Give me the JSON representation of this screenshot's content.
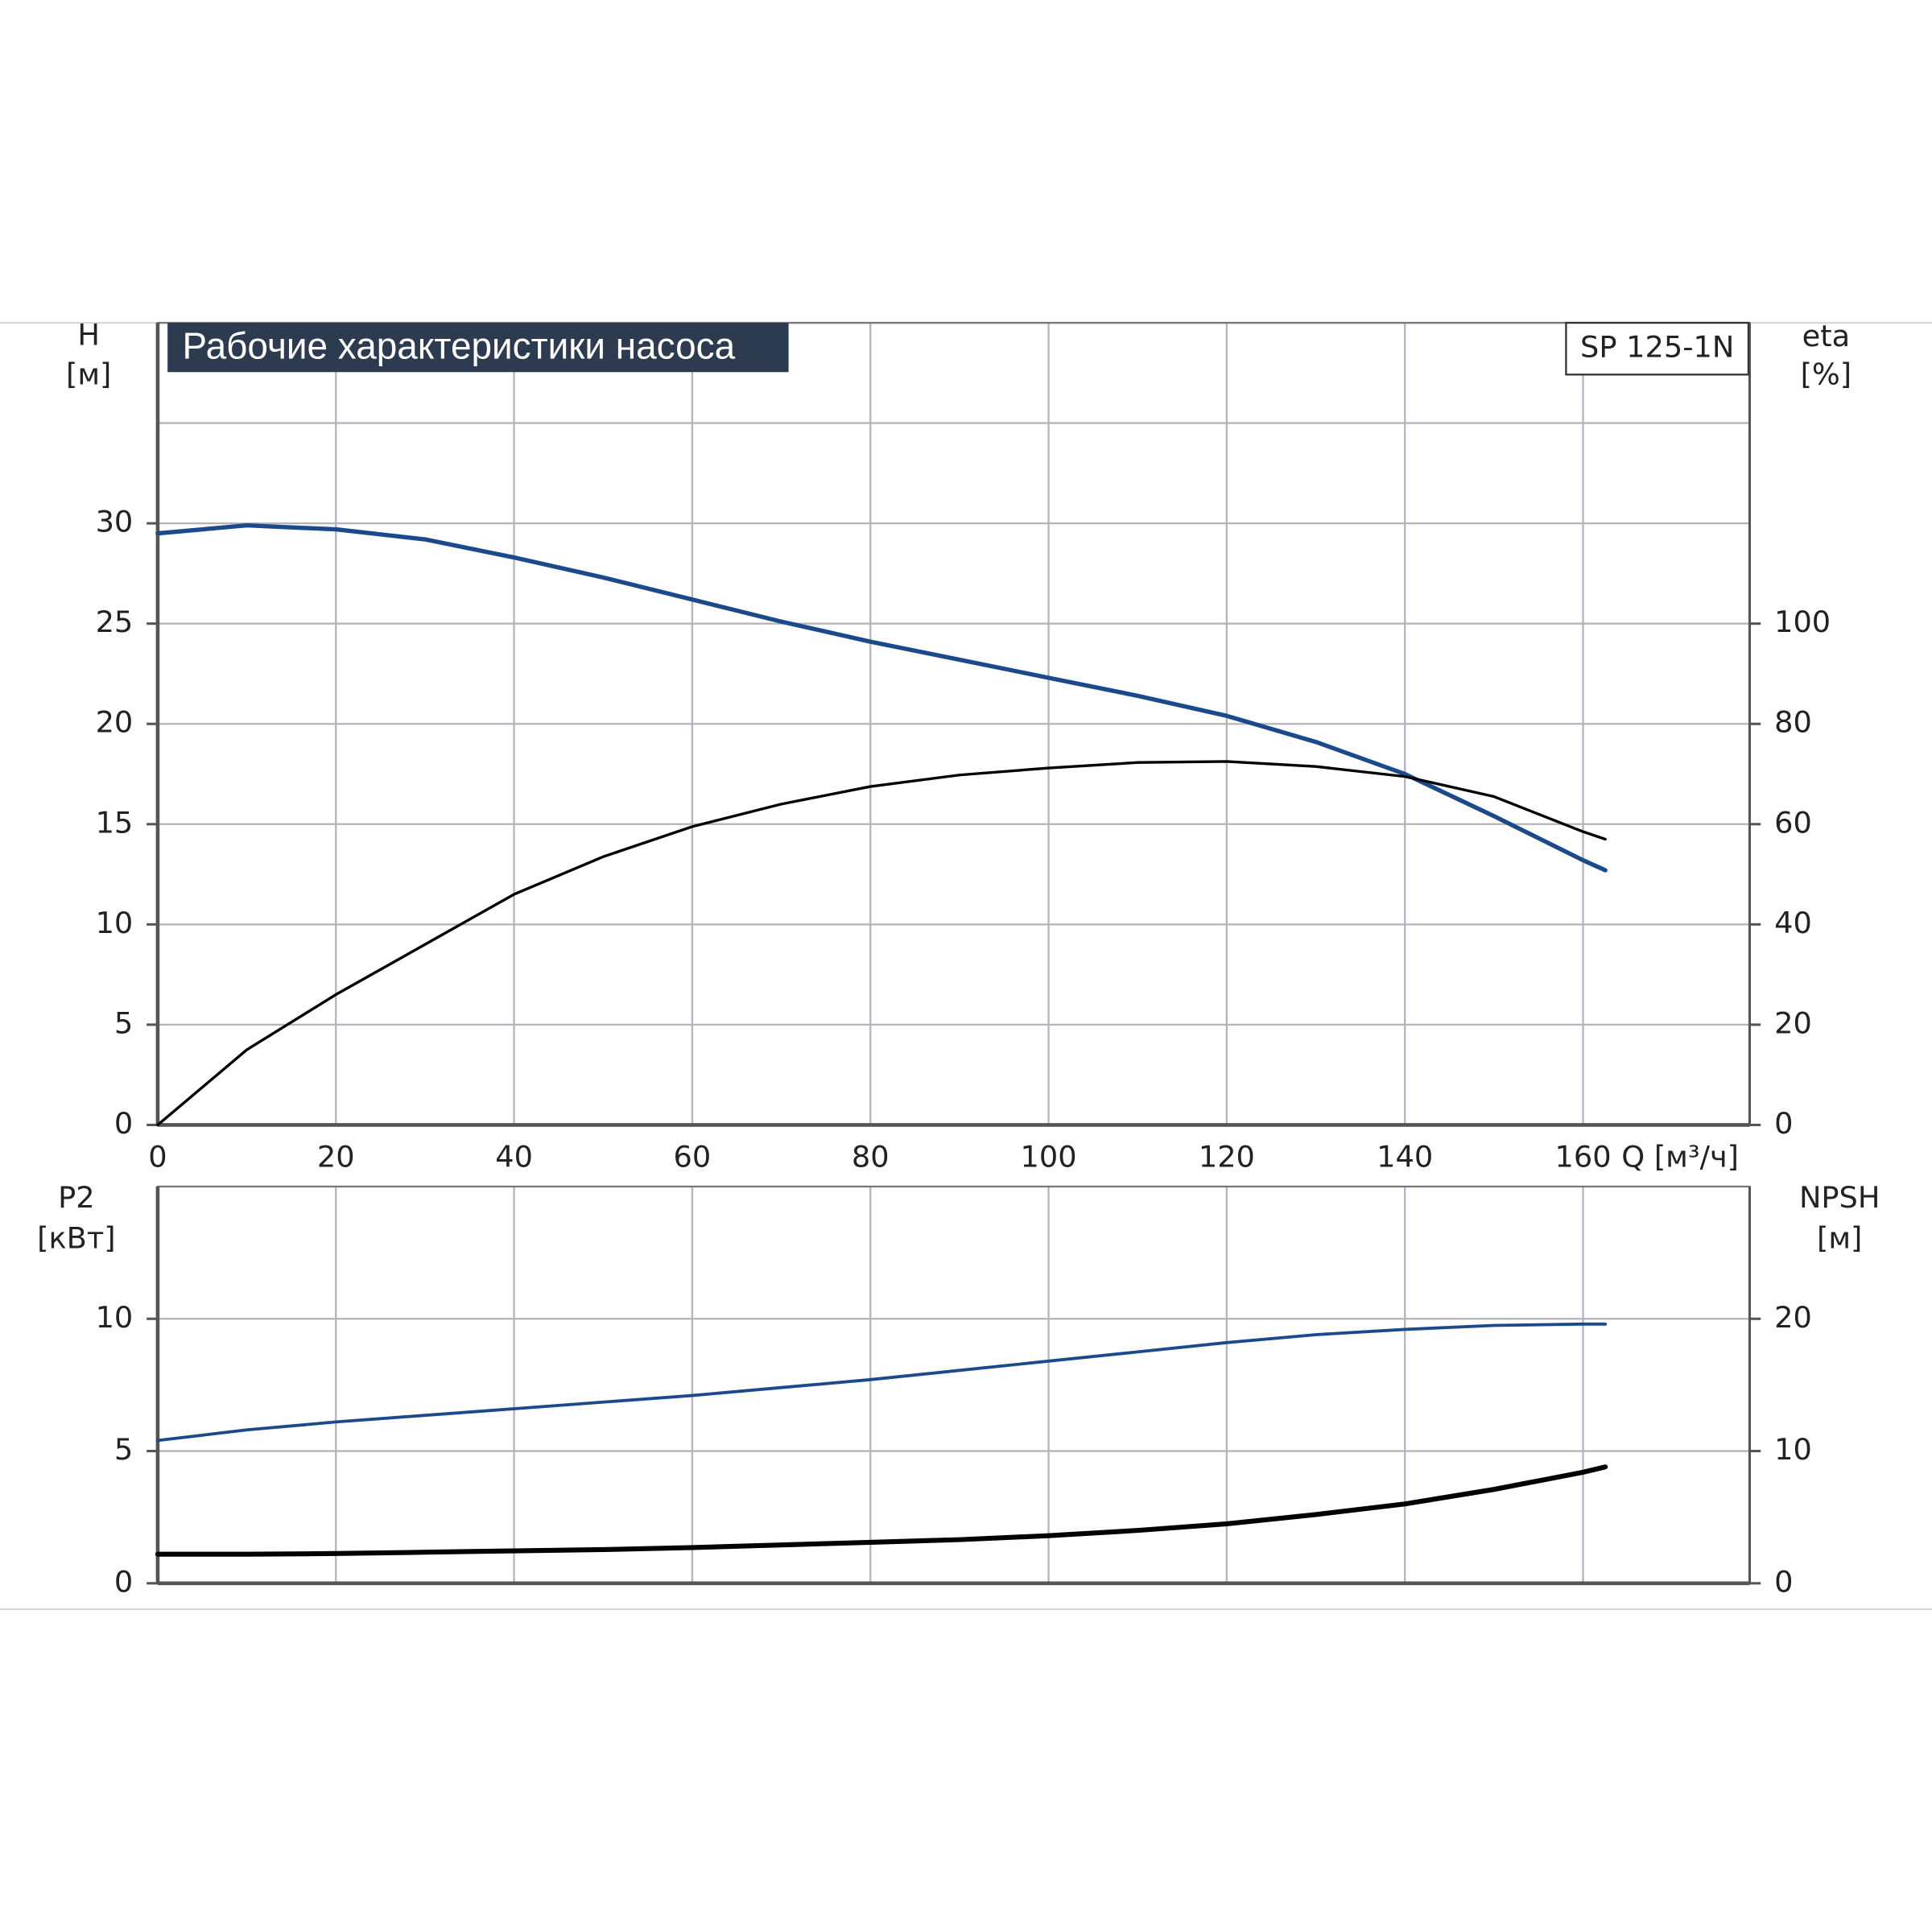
{
  "chart_data": [
    {
      "type": "line",
      "title": "Рабочие характеристики насоса",
      "model": "SP 125-1N",
      "ylabel": "H",
      "yunit": "[м]",
      "y2label": "eta",
      "y2unit": "[%]",
      "xlabel": "Q [м³/ч]",
      "x": [
        0,
        10,
        20,
        30,
        40,
        50,
        60,
        70,
        80,
        90,
        100,
        110,
        120,
        130,
        140,
        150,
        160,
        162.5
      ],
      "xlim": [
        0,
        178.7
      ],
      "xticks": [
        0,
        20,
        40,
        60,
        80,
        100,
        120,
        140,
        160
      ],
      "ylim": [
        0,
        40
      ],
      "yticks": [
        0,
        5,
        10,
        15,
        20,
        25,
        30
      ],
      "ygrid": [
        35
      ],
      "y2lim": [
        0,
        160
      ],
      "y2ticks": [
        0,
        20,
        40,
        60,
        80,
        100
      ],
      "grid": true,
      "series": [
        {
          "name": "H",
          "color": "#1b4a8c",
          "width": 3.5,
          "axis": "y",
          "values": [
            29.5,
            29.9,
            29.7,
            29.2,
            28.3,
            27.3,
            26.2,
            25.1,
            24.1,
            23.2,
            22.3,
            21.4,
            20.4,
            19.1,
            17.5,
            15.4,
            13.2,
            12.7
          ]
        },
        {
          "name": "eta",
          "color": "#000000",
          "width": 2.2,
          "axis": "y2",
          "values": [
            0,
            15,
            26,
            36,
            46,
            53.5,
            59.5,
            64,
            67.5,
            69.8,
            71.2,
            72.3,
            72.5,
            71.5,
            69.5,
            65.5,
            58.5,
            57
          ]
        }
      ]
    },
    {
      "type": "line",
      "ylabel": "P2",
      "yunit": "[кВт]",
      "y2label": "NPSH",
      "y2unit": "[м]",
      "x": [
        0,
        10,
        20,
        30,
        40,
        50,
        60,
        70,
        80,
        90,
        100,
        110,
        120,
        130,
        140,
        150,
        160,
        162.5
      ],
      "xlim": [
        0,
        178.7
      ],
      "xgrid": [
        0,
        20,
        40,
        60,
        80,
        100,
        120,
        140,
        160
      ],
      "ylim": [
        0,
        15
      ],
      "yticks": [
        0,
        5,
        10
      ],
      "y2lim": [
        0,
        30
      ],
      "y2ticks": [
        0,
        10,
        20
      ],
      "grid": true,
      "series": [
        {
          "name": "P2",
          "color": "#1b4a8c",
          "width": 2.5,
          "axis": "y",
          "values": [
            5.4,
            5.8,
            6.1,
            6.35,
            6.6,
            6.85,
            7.1,
            7.4,
            7.7,
            8.05,
            8.4,
            8.75,
            9.1,
            9.4,
            9.6,
            9.75,
            9.8,
            9.8
          ]
        },
        {
          "name": "NPSH",
          "color": "#000000",
          "width": 4,
          "axis": "y2",
          "values": [
            2.2,
            2.2,
            2.25,
            2.35,
            2.45,
            2.55,
            2.7,
            2.9,
            3.1,
            3.3,
            3.6,
            4.0,
            4.5,
            5.2,
            6.0,
            7.1,
            8.4,
            8.8
          ]
        }
      ]
    }
  ]
}
